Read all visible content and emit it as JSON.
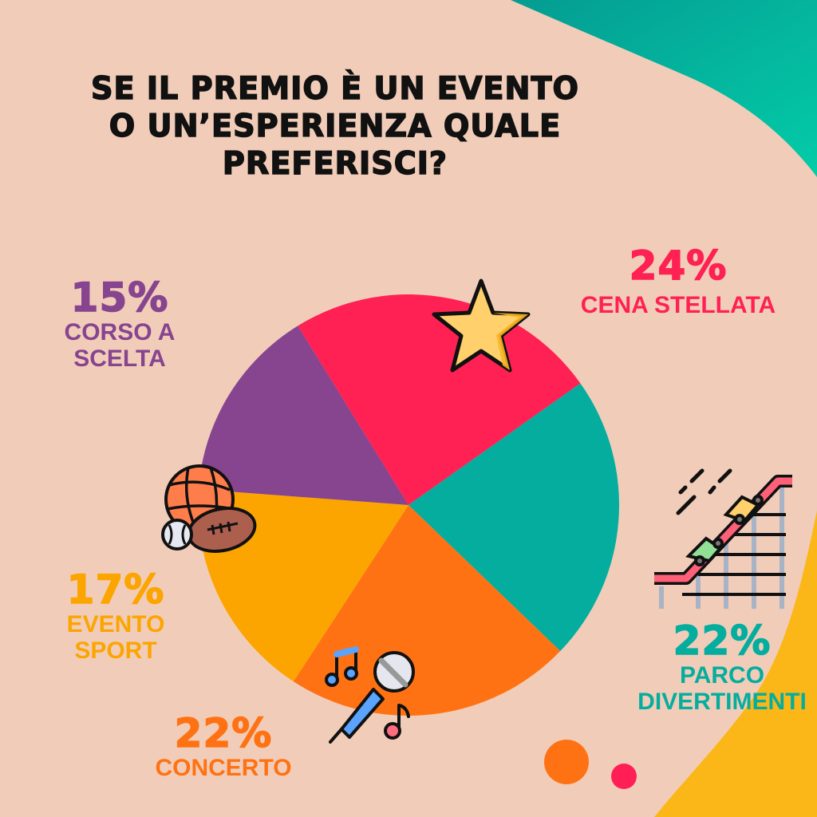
{
  "title_lines": [
    "Se il premio è un evento",
    "o un’esperienza quale",
    "preferisci?"
  ],
  "colors": {
    "background": "#f1cdb9",
    "teal_blob": "#06b39f",
    "yellow_blob": "#fbb717",
    "dot_orange": "#ff7213",
    "dot_red": "#ff1f55"
  },
  "labels": {
    "cena": {
      "pct": "24%",
      "name": "CENA STELLATA",
      "color": "#ff2153"
    },
    "parco": {
      "pct": "22%",
      "name_line1": "PARCO",
      "name_line2": "DIVERTIMENTI",
      "color": "#05ad9f"
    },
    "concerto": {
      "pct": "22%",
      "name": "CONCERTO",
      "color": "#ff7213"
    },
    "sport": {
      "pct": "17%",
      "name_line1": "EVENTO",
      "name_line2": "SPORT",
      "color": "#fca500"
    },
    "corso": {
      "pct": "15%",
      "name_line1": "CORSO A",
      "name_line2": "SCELTA",
      "color": "#87448f"
    }
  },
  "icons": {
    "cena": "star-icon",
    "parco": "roller-coaster-icon",
    "concerto": "microphone-icon",
    "sport": "sports-balls-icon"
  },
  "chart_data": {
    "type": "pie",
    "title": "Se il premio è un evento o un’esperienza quale preferisci?",
    "start_angle_deg": -31.7,
    "direction": "clockwise",
    "categories": [
      "Cena stellata",
      "Parco divertimenti",
      "Concerto",
      "Evento sport",
      "Corso a scelta"
    ],
    "values": [
      24,
      22,
      22,
      17,
      15
    ],
    "unit": "%",
    "colors": [
      "#ff2153",
      "#05ad9f",
      "#ff7213",
      "#fca500",
      "#87448f"
    ],
    "legend": "none (direct labels around pie)"
  }
}
